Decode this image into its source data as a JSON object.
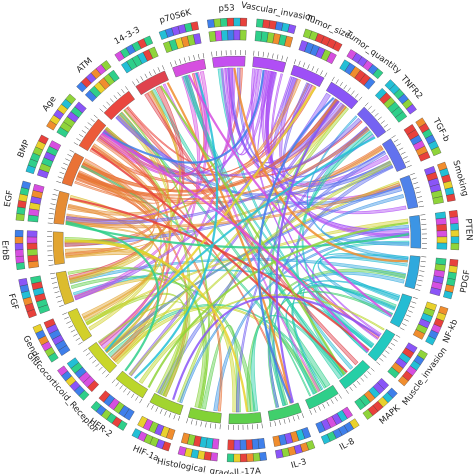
{
  "segments": [
    {
      "label": "p70S6K",
      "color": "#d64fe0"
    },
    {
      "label": "p53",
      "color": "#c44ff0"
    },
    {
      "label": "Vascular_invasion",
      "color": "#b04ef5"
    },
    {
      "label": "Tumor_size",
      "color": "#9d4ff7"
    },
    {
      "label": "Tumor_quantity",
      "color": "#8a55f7"
    },
    {
      "label": "TNFR2",
      "color": "#7563f2"
    },
    {
      "label": "TGF-b",
      "color": "#6272ee"
    },
    {
      "label": "Smoking",
      "color": "#4f82ea"
    },
    {
      "label": "PTEN",
      "color": "#3c95e4"
    },
    {
      "label": "PDGF",
      "color": "#2fa9dd"
    },
    {
      "label": "NF-kb",
      "color": "#25bcd3"
    },
    {
      "label": "Muscle_invasion",
      "color": "#22c9c0"
    },
    {
      "label": "MAPK",
      "color": "#25cfa6"
    },
    {
      "label": "IL-8",
      "color": "#2fcf8a"
    },
    {
      "label": "IL-3",
      "color": "#40cf6c"
    },
    {
      "label": "IL-17A",
      "color": "#5ecf4c"
    },
    {
      "label": "Histological_grade",
      "color": "#82d236"
    },
    {
      "label": "HIF-1a",
      "color": "#a2d42e"
    },
    {
      "label": "HER-2",
      "color": "#bbd62a"
    },
    {
      "label": "Glucocorticoid_Receptor",
      "color": "#c9d62a"
    },
    {
      "label": "Gender",
      "color": "#d2d02c"
    },
    {
      "label": "FGF",
      "color": "#dcbc2e"
    },
    {
      "label": "ErbB",
      "color": "#e2a530"
    },
    {
      "label": "EGF",
      "color": "#e68c33"
    },
    {
      "label": "BMP",
      "color": "#e97236"
    },
    {
      "label": "Age",
      "color": "#ec5a39"
    },
    {
      "label": "ATM",
      "color": "#ea463f"
    },
    {
      "label": "14-3-3",
      "color": "#e0434e"
    }
  ],
  "palette": [
    "#e8413c",
    "#f08d2e",
    "#e9d12c",
    "#8fd43a",
    "#2fcf8a",
    "#23bfd6",
    "#3f7fea",
    "#8a55f7",
    "#d64fe0"
  ]
}
